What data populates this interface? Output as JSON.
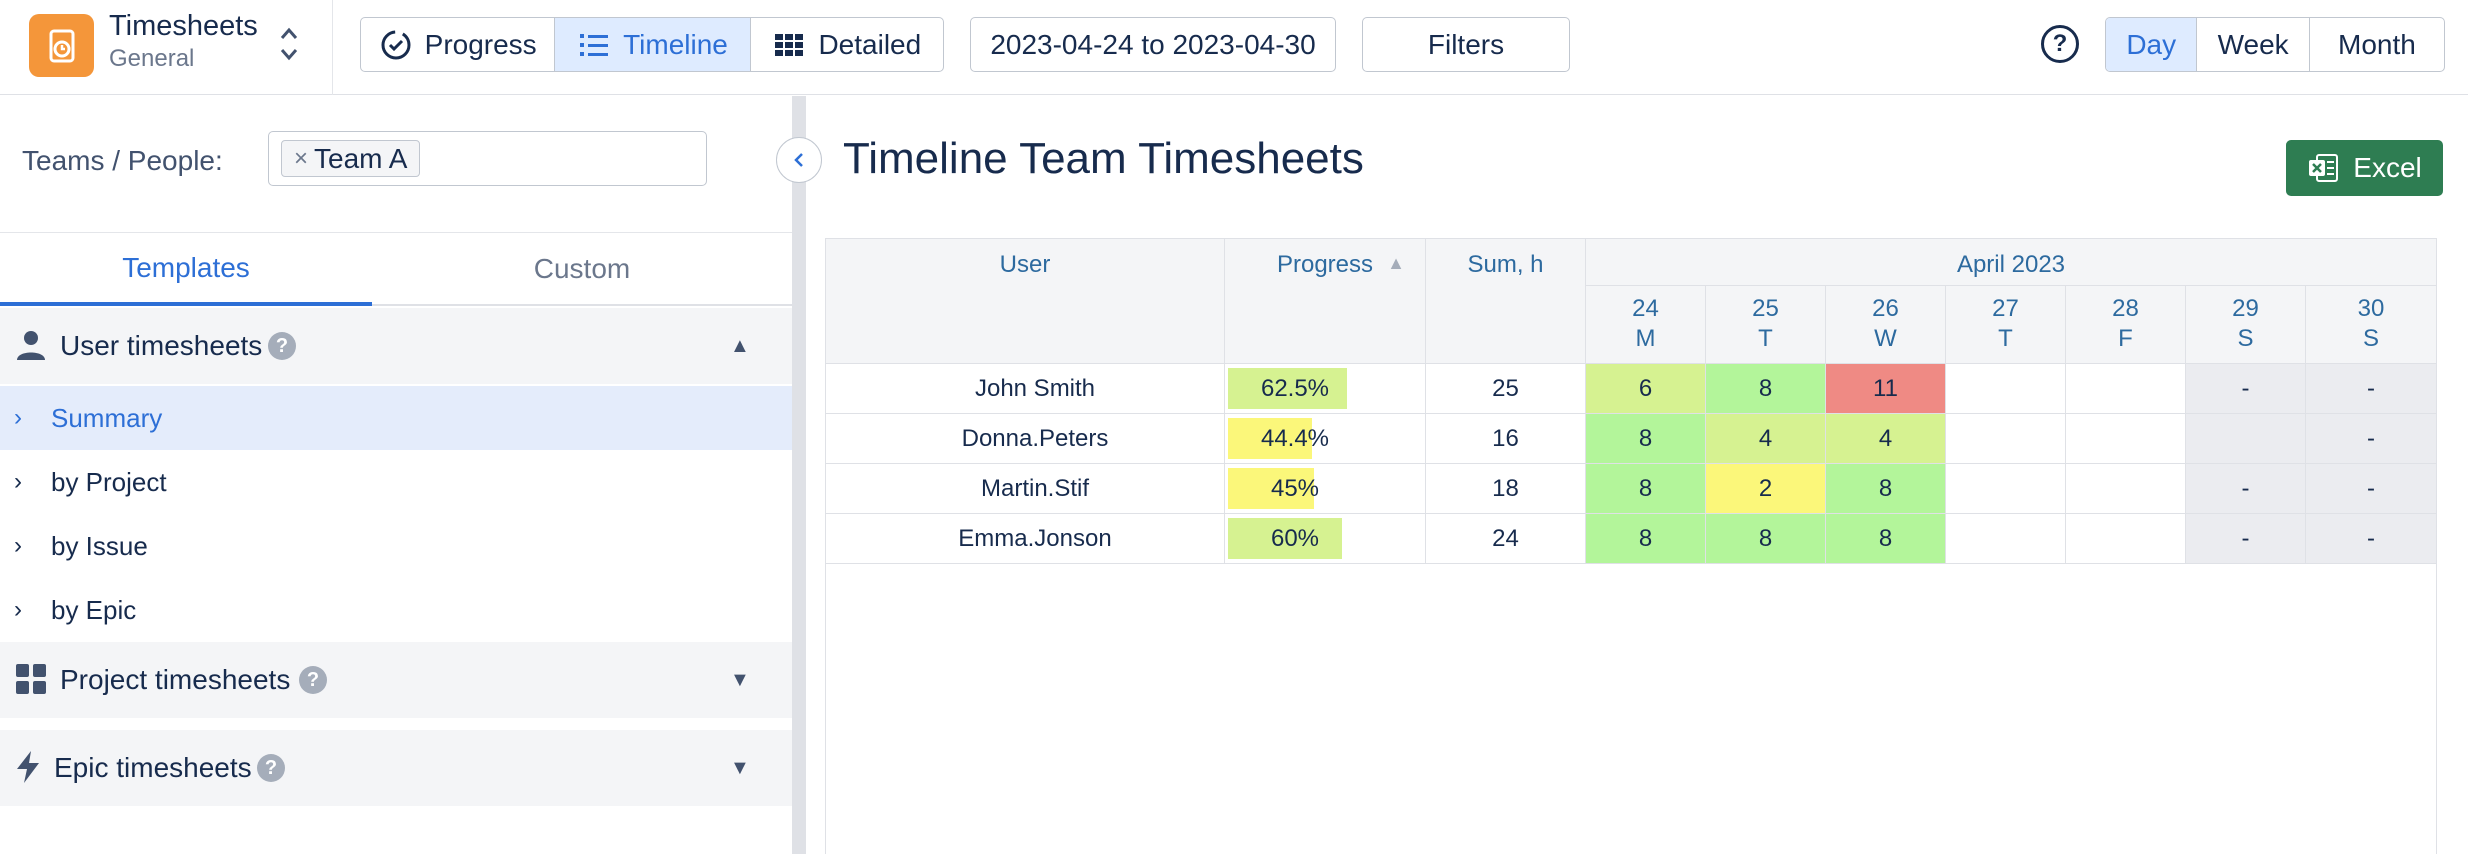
{
  "app": {
    "title": "Timesheets",
    "subtitle": "General"
  },
  "views": {
    "progress": "Progress",
    "timeline": "Timeline",
    "detailed": "Detailed"
  },
  "date_range": "2023-04-24 to 2023-04-30",
  "filters_label": "Filters",
  "period": {
    "day": "Day",
    "week": "Week",
    "month": "Month",
    "selected": "Day"
  },
  "sidebar": {
    "teams_label": "Teams / People:",
    "team_tag": "Team A",
    "tabs": [
      "Templates",
      "Custom"
    ],
    "sections": {
      "user": "User timesheets",
      "project": "Project timesheets",
      "epic": "Epic timesheets"
    },
    "items": [
      "Summary",
      "by Project",
      "by Issue",
      "by Epic"
    ],
    "help_glyph": "?"
  },
  "main": {
    "title": "Timeline Team Timesheets",
    "excel_label": "Excel",
    "columns": {
      "user": "User",
      "progress": "Progress",
      "sum": "Sum, h",
      "month": "April 2023"
    },
    "days": [
      {
        "num": "24",
        "dow": "M"
      },
      {
        "num": "25",
        "dow": "T"
      },
      {
        "num": "26",
        "dow": "W"
      },
      {
        "num": "27",
        "dow": "T"
      },
      {
        "num": "28",
        "dow": "F"
      },
      {
        "num": "29",
        "dow": "S"
      },
      {
        "num": "30",
        "dow": "S"
      }
    ],
    "rows": [
      {
        "user": "John Smith",
        "progress": "62.5%",
        "progress_value": 0.625,
        "sum": "25",
        "days": [
          "6",
          "8",
          "11",
          "",
          "",
          "-",
          "-"
        ]
      },
      {
        "user": "Donna.Peters",
        "progress": "44.4%",
        "progress_value": 0.444,
        "sum": "16",
        "days": [
          "8",
          "4",
          "4",
          "",
          "",
          "",
          "-"
        ]
      },
      {
        "user": "Martin.Stif",
        "progress": "45%",
        "progress_value": 0.45,
        "sum": "18",
        "days": [
          "8",
          "2",
          "8",
          "",
          "",
          "-",
          "-"
        ]
      },
      {
        "user": "Emma.Jonson",
        "progress": "60%",
        "progress_value": 0.6,
        "sum": "24",
        "days": [
          "8",
          "8",
          "8",
          "",
          "",
          "-",
          "-"
        ]
      }
    ]
  },
  "colors": {
    "accent": "#2d6fd6",
    "app_icon": "#f4963a",
    "excel": "#2e7d52",
    "cell_green": "#b3f59a",
    "cell_light_green": "#d6f291",
    "cell_yellow": "#fbf77a",
    "cell_red": "#ef8a84",
    "bar_green": "#d6f291",
    "bar_yellow": "#fbf77a"
  }
}
